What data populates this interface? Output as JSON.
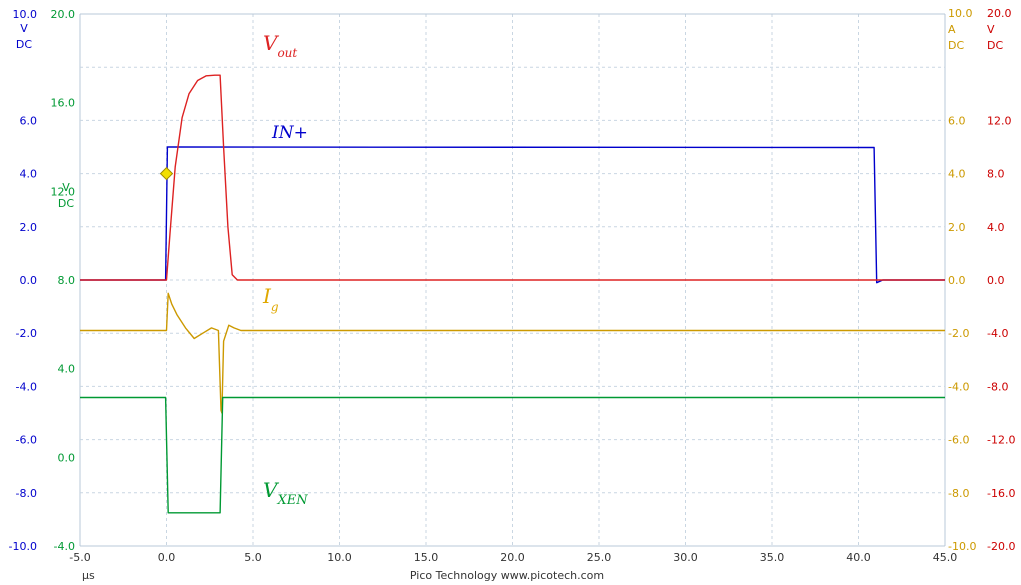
{
  "chart_data": {
    "type": "line",
    "x": {
      "ticks": [
        "-5.0",
        "0.0",
        "5.0",
        "10.0",
        "15.0",
        "20.0",
        "25.0",
        "30.0",
        "35.0",
        "40.0",
        "45.0"
      ],
      "range": [
        -5,
        45
      ],
      "unit": "µs"
    },
    "axes": {
      "left_blue": {
        "color": "#0000cc",
        "unit_lines": [
          "V",
          "DC"
        ],
        "ticks": [
          "10.0",
          "6.0",
          "4.0",
          "2.0",
          "0.0",
          "-2.0",
          "-4.0",
          "-6.0",
          "-8.0",
          "-10.0"
        ],
        "range": [
          -10,
          10
        ]
      },
      "left_green": {
        "color": "#009933",
        "unit_lines": [
          "V",
          "DC"
        ],
        "ticks": [
          "20.0",
          "16.0",
          "12.0",
          "8.0",
          "4.0",
          "0.0",
          "-4.0"
        ],
        "range": [
          -4,
          20
        ]
      },
      "right_orange": {
        "color": "#cc9900",
        "unit_lines": [
          "10.0",
          "A",
          "DC"
        ],
        "ticks": [
          "6.0",
          "4.0",
          "2.0",
          "0.0",
          "-2.0",
          "-4.0",
          "-6.0",
          "-8.0",
          "-10.0"
        ],
        "range": [
          -10,
          10
        ]
      },
      "right_red": {
        "color": "#cc0000",
        "unit_lines": [
          "20.0",
          "V",
          "DC"
        ],
        "ticks": [
          "12.0",
          "8.0",
          "4.0",
          "0.0",
          "-4.0",
          "-8.0",
          "-12.0",
          "-16.0",
          "-20.0"
        ],
        "range": [
          -20,
          20
        ]
      }
    },
    "series": [
      {
        "name": "IN+",
        "color": "#0000cc",
        "axis": "left_blue",
        "points": [
          [
            -5,
            0
          ],
          [
            -0.05,
            0
          ],
          [
            0.05,
            5
          ],
          [
            40.9,
            4.98
          ],
          [
            41.05,
            -0.1
          ],
          [
            41.4,
            0
          ],
          [
            45,
            0
          ]
        ]
      },
      {
        "name": "Vout",
        "color": "#dd2222",
        "axis": "right_red",
        "points": [
          [
            -5,
            0
          ],
          [
            0,
            0
          ],
          [
            0.2,
            3.5
          ],
          [
            0.5,
            8.5
          ],
          [
            0.9,
            12.2
          ],
          [
            1.3,
            14.0
          ],
          [
            1.8,
            15.0
          ],
          [
            2.3,
            15.35
          ],
          [
            2.8,
            15.4
          ],
          [
            3.1,
            15.4
          ],
          [
            3.3,
            10
          ],
          [
            3.55,
            4
          ],
          [
            3.8,
            0.4
          ],
          [
            4.1,
            0
          ],
          [
            45,
            0
          ]
        ]
      },
      {
        "name": "Ig",
        "color": "#cc9900",
        "axis": "right_orange",
        "points": [
          [
            -5,
            -1.9
          ],
          [
            0,
            -1.9
          ],
          [
            0.1,
            -0.5
          ],
          [
            0.3,
            -0.9
          ],
          [
            0.6,
            -1.3
          ],
          [
            1.1,
            -1.8
          ],
          [
            1.6,
            -2.2
          ],
          [
            2.1,
            -2.0
          ],
          [
            2.6,
            -1.8
          ],
          [
            3.0,
            -1.9
          ],
          [
            3.15,
            -4.9
          ],
          [
            3.2,
            -5.0
          ],
          [
            3.3,
            -2.3
          ],
          [
            3.6,
            -1.7
          ],
          [
            3.9,
            -1.8
          ],
          [
            4.3,
            -1.9
          ],
          [
            45,
            -1.9
          ]
        ]
      },
      {
        "name": "VXEN",
        "color": "#009933",
        "axis": "left_green",
        "points": [
          [
            -5,
            2.7
          ],
          [
            -0.05,
            2.7
          ],
          [
            0.1,
            -2.5
          ],
          [
            3.1,
            -2.5
          ],
          [
            3.25,
            2.7
          ],
          [
            45,
            2.7
          ]
        ]
      }
    ],
    "trigger": {
      "x": 0,
      "y": 4.0,
      "axis": "left_blue",
      "color": "#f2df00"
    },
    "annotations": [
      {
        "text": "V",
        "sub": "out",
        "color": "#dd2222"
      },
      {
        "text": "IN+",
        "sub": "",
        "color": "#0000cc"
      },
      {
        "text": "I",
        "sub": "g",
        "color": "#e0a800"
      },
      {
        "text": "V",
        "sub": "XEN",
        "color": "#009933"
      }
    ],
    "footer": "Pico Technology   www.picotech.com",
    "grid": true
  }
}
